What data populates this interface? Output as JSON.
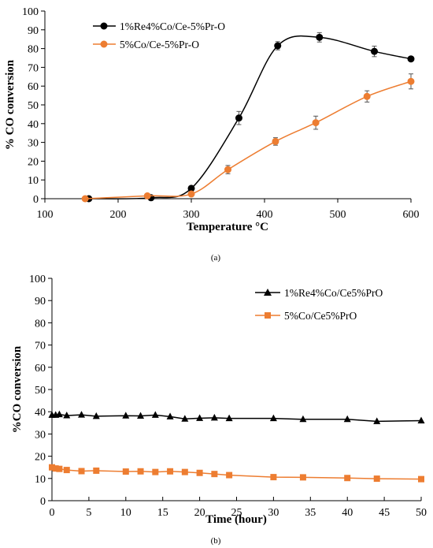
{
  "chart_data": [
    {
      "type": "line",
      "panel_label": "(a)",
      "xlabel": "Temperature °C",
      "ylabel": "% CO conversion",
      "xlim": [
        100,
        600
      ],
      "ylim": [
        0,
        100
      ],
      "xticks": [
        100,
        200,
        300,
        400,
        500,
        600
      ],
      "yticks": [
        0,
        10,
        20,
        30,
        40,
        50,
        60,
        70,
        80,
        90,
        100
      ],
      "grid": false,
      "legend_position": "top-left",
      "series": [
        {
          "name": "1%Re4%Co/Ce-5%Pr-O",
          "color": "#000000",
          "marker": "circle",
          "smooth": true,
          "x": [
            160,
            245,
            300,
            365,
            418,
            475,
            550,
            600
          ],
          "y": [
            0,
            0.5,
            5.5,
            43,
            81.5,
            86,
            78.5,
            74.5
          ],
          "err": [
            0,
            0,
            0,
            3.5,
            2.2,
            2.5,
            2.8,
            0
          ]
        },
        {
          "name": "5%Co/Ce-5%Pr-O",
          "color": "#ed7d31",
          "marker": "circle",
          "smooth": true,
          "x": [
            155,
            240,
            300,
            350,
            415,
            470,
            540,
            600
          ],
          "y": [
            0,
            1.5,
            2.5,
            15.5,
            30.5,
            40.5,
            54.5,
            62.5
          ],
          "err": [
            0,
            0.8,
            0.8,
            2.2,
            2.0,
            3.5,
            3.0,
            4.0
          ]
        }
      ]
    },
    {
      "type": "line",
      "panel_label": "(b)",
      "xlabel": "Time (hour)",
      "ylabel": "%CO conversion",
      "xlim": [
        0,
        50
      ],
      "ylim": [
        0,
        100
      ],
      "xticks": [
        0,
        5,
        10,
        15,
        20,
        25,
        30,
        35,
        40,
        45,
        50
      ],
      "yticks": [
        0,
        10,
        20,
        30,
        40,
        50,
        60,
        70,
        80,
        90,
        100
      ],
      "grid": false,
      "legend_position": "top-right",
      "series": [
        {
          "name": "1%Re4%Co/Ce5%PrO",
          "color": "#000000",
          "marker": "triangle",
          "smooth": false,
          "x": [
            0,
            0.5,
            1,
            2,
            4,
            6,
            10,
            12,
            14,
            16,
            18,
            20,
            22,
            24,
            30,
            34,
            40,
            44,
            50
          ],
          "y": [
            38.5,
            38.5,
            38.8,
            38.3,
            38.6,
            38.0,
            38.2,
            38.1,
            38.5,
            37.8,
            36.8,
            37.1,
            37.3,
            37.0,
            37.0,
            36.6,
            36.6,
            35.7,
            36.0
          ]
        },
        {
          "name": "5%Co/Ce5%PrO",
          "color": "#ed7d31",
          "marker": "square",
          "smooth": false,
          "x": [
            0,
            0.5,
            1,
            2,
            4,
            6,
            10,
            12,
            14,
            16,
            18,
            20,
            22,
            24,
            30,
            34,
            40,
            44,
            50
          ],
          "y": [
            15.0,
            14.5,
            14.3,
            13.8,
            13.3,
            13.5,
            13.1,
            13.2,
            12.9,
            13.2,
            12.9,
            12.5,
            12.0,
            11.5,
            10.6,
            10.5,
            10.2,
            9.9,
            9.7
          ]
        }
      ]
    }
  ]
}
